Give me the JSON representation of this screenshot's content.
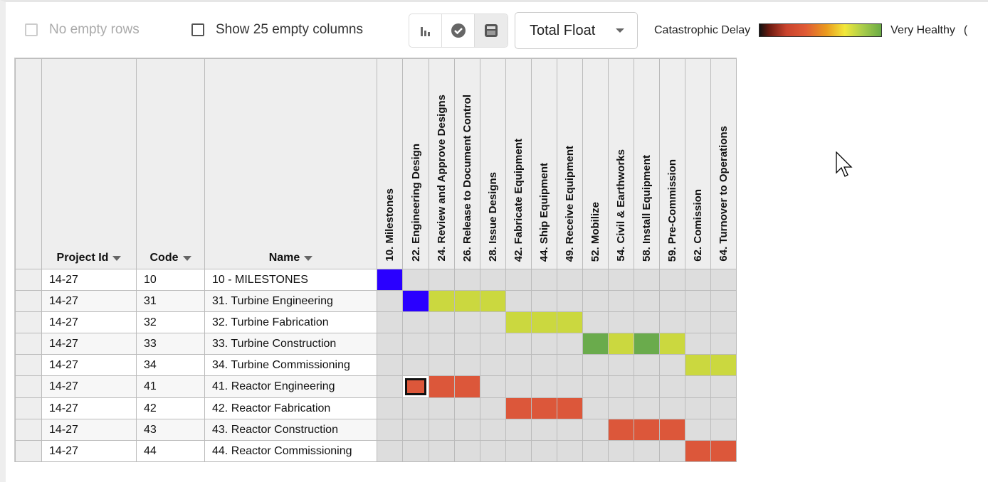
{
  "toolbar": {
    "no_empty_rows": "No empty rows",
    "show_empty_columns": "Show 25 empty columns",
    "metric_select": "Total Float",
    "legend_low": "Catastrophic Delay",
    "legend_high": "Very Healthy",
    "legend_extra": "("
  },
  "columns": {
    "project_id": "Project Id",
    "code": "Code",
    "name": "Name"
  },
  "activity_columns": [
    "10. Milestones",
    "22. Engineering Design",
    "24. Review and Approve Designs",
    "26. Release to Document Control",
    "28. Issue Designs",
    "42. Fabricate Equipment",
    "44. Ship Equipment",
    "49. Receive Equipment",
    "52. Mobilize",
    "54. Civil & Earthworks",
    "58. Install Equipment",
    "59. Pre-Commission",
    "62. Comission",
    "64. Turnover to Operations"
  ],
  "colors": {
    "blue": "#2a00ff",
    "yellow": "#cbd83f",
    "green": "#6aab4c",
    "red": "#dc573a",
    "empty": "#dddddd"
  },
  "rows": [
    {
      "project_id": "14-27",
      "code": "10",
      "name": "10 - MILESTONES",
      "cells": [
        "blue",
        "",
        "",
        "",
        "",
        "",
        "",
        "",
        "",
        "",
        "",
        "",
        "",
        ""
      ]
    },
    {
      "project_id": "14-27",
      "code": "31",
      "name": "31. Turbine Engineering",
      "cells": [
        "",
        "blue",
        "yellow",
        "yellow",
        "yellow",
        "",
        "",
        "",
        "",
        "",
        "",
        "",
        "",
        ""
      ]
    },
    {
      "project_id": "14-27",
      "code": "32",
      "name": "32. Turbine Fabrication",
      "cells": [
        "",
        "",
        "",
        "",
        "",
        "yellow",
        "yellow",
        "yellow",
        "",
        "",
        "",
        "",
        "",
        ""
      ]
    },
    {
      "project_id": "14-27",
      "code": "33",
      "name": "33. Turbine Construction",
      "cells": [
        "",
        "",
        "",
        "",
        "",
        "",
        "",
        "",
        "green",
        "yellow",
        "green",
        "yellow",
        "",
        ""
      ]
    },
    {
      "project_id": "14-27",
      "code": "34",
      "name": "34. Turbine Commissioning",
      "cells": [
        "",
        "",
        "",
        "",
        "",
        "",
        "",
        "",
        "",
        "",
        "",
        "",
        "yellow",
        "yellow"
      ]
    },
    {
      "project_id": "14-27",
      "code": "41",
      "name": "41. Reactor Engineering",
      "cells": [
        "",
        "red sel",
        "red",
        "red",
        "",
        "",
        "",
        "",
        "",
        "",
        "",
        "",
        "",
        ""
      ]
    },
    {
      "project_id": "14-27",
      "code": "42",
      "name": "42. Reactor Fabrication",
      "cells": [
        "",
        "",
        "",
        "",
        "",
        "red",
        "red",
        "red",
        "",
        "",
        "",
        "",
        "",
        ""
      ]
    },
    {
      "project_id": "14-27",
      "code": "43",
      "name": "43. Reactor Construction",
      "cells": [
        "",
        "",
        "",
        "",
        "",
        "",
        "",
        "",
        "",
        "red",
        "red",
        "red",
        "",
        ""
      ]
    },
    {
      "project_id": "14-27",
      "code": "44",
      "name": "44. Reactor Commissioning",
      "cells": [
        "",
        "",
        "",
        "",
        "",
        "",
        "",
        "",
        "",
        "",
        "",
        "",
        "red",
        "red"
      ]
    }
  ]
}
